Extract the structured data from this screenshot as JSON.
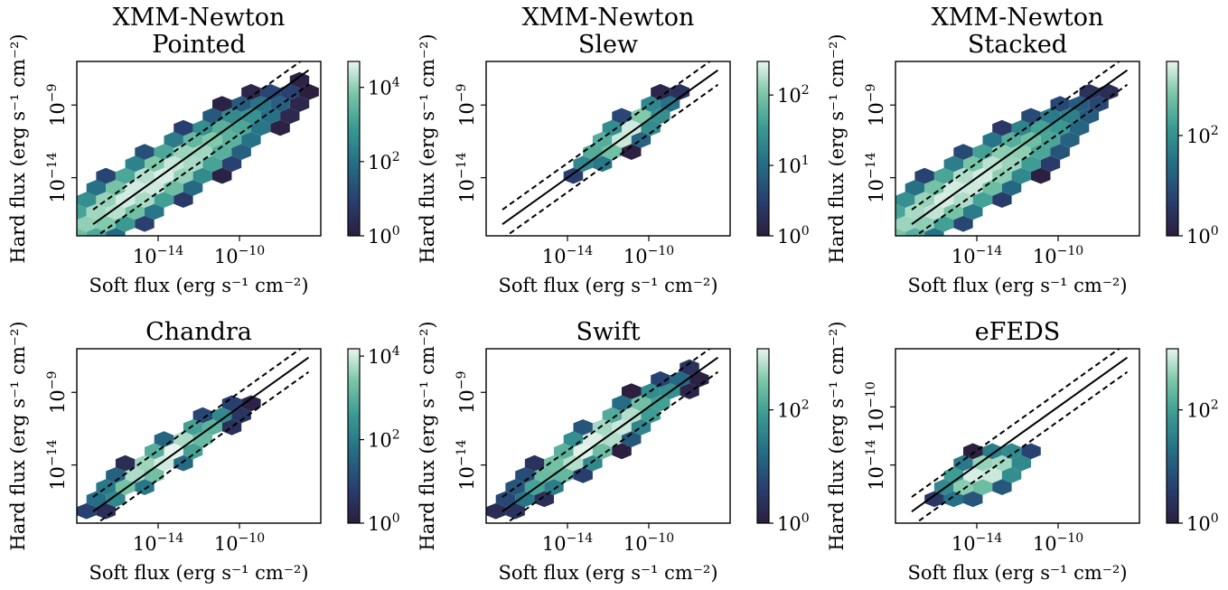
{
  "figure": {
    "type": "hexbin-scatter-grid",
    "xlabel": "Soft flux (erg s⁻¹ cm⁻²)",
    "ylabel": "Hard flux (erg s⁻¹ cm⁻²)",
    "x_scale": "log",
    "y_scale": "log",
    "colorbar_scale": "log",
    "colormap": [
      "#2c1e3d",
      "#283f70",
      "#256f86",
      "#3a9a92",
      "#7cc7a8",
      "#e9f5ef"
    ],
    "ref_lines": {
      "solid": "y = x",
      "dashed": "y = x ± 1 dex"
    }
  },
  "chart_data": [
    {
      "type": "hexbin",
      "title": [
        "XMM-Newton",
        "Pointed"
      ],
      "xlim": [
        1e-18,
        1e-06
      ],
      "ylim": [
        1e-18,
        1e-06
      ],
      "xticks": [
        "10^-14",
        "10^-10"
      ],
      "yticks": [
        "10^-14",
        "10^-9"
      ],
      "colorbar": {
        "min": 1,
        "max": 50000,
        "ticks": [
          "10^0",
          "10^2",
          "10^4"
        ]
      },
      "density": {
        "center": [
          -14.5,
          -14.5
        ],
        "spread": [
          3.5,
          3.3
        ],
        "slope": 0.85,
        "corr": 0.7,
        "peak_log_count": 4.6
      }
    },
    {
      "type": "hexbin",
      "title": [
        "XMM-Newton",
        "Slew"
      ],
      "xlim": [
        1e-18,
        1e-06
      ],
      "ylim": [
        1e-18,
        1e-06
      ],
      "xticks": [
        "10^-14",
        "10^-10"
      ],
      "yticks": [
        "10^-14",
        "10^-9"
      ],
      "colorbar": {
        "min": 1,
        "max": 300,
        "ticks": [
          "10^0",
          "10^1",
          "10^2"
        ]
      },
      "density": {
        "center": [
          -11.2,
          -11.0
        ],
        "spread": [
          1.3,
          1.1
        ],
        "slope": 0.95,
        "corr": 0.6,
        "peak_log_count": 2.4
      }
    },
    {
      "type": "hexbin",
      "title": [
        "XMM-Newton",
        "Stacked"
      ],
      "xlim": [
        1e-18,
        1e-06
      ],
      "ylim": [
        1e-18,
        1e-06
      ],
      "xticks": [
        "10^-14",
        "10^-10"
      ],
      "yticks": [
        "10^-14",
        "10^-9"
      ],
      "colorbar": {
        "min": 1,
        "max": 3000,
        "ticks": [
          "10^0",
          "10^2"
        ]
      },
      "density": {
        "center": [
          -14.8,
          -14.8
        ],
        "spread": [
          3.4,
          3.1
        ],
        "slope": 0.85,
        "corr": 0.68,
        "peak_log_count": 3.4
      }
    },
    {
      "type": "hexbin",
      "title": [
        "Chandra"
      ],
      "xlim": [
        1e-18,
        1e-06
      ],
      "ylim": [
        1e-18,
        1e-06
      ],
      "xticks": [
        "10^-14",
        "10^-10"
      ],
      "yticks": [
        "10^-14",
        "10^-9"
      ],
      "colorbar": {
        "min": 1,
        "max": 15000,
        "ticks": [
          "10^0",
          "10^2",
          "10^4"
        ]
      },
      "density": {
        "center": [
          -13.7,
          -13.5
        ],
        "spread": [
          1.9,
          1.8
        ],
        "slope": 0.9,
        "corr": 0.75,
        "peak_log_count": 4.2
      }
    },
    {
      "type": "hexbin",
      "title": [
        "Swift"
      ],
      "xlim": [
        1e-18,
        1e-06
      ],
      "ylim": [
        1e-18,
        1e-06
      ],
      "xticks": [
        "10^-14",
        "10^-10"
      ],
      "yticks": [
        "10^-14",
        "10^-9"
      ],
      "colorbar": {
        "min": 1,
        "max": 1200,
        "ticks": [
          "10^0",
          "10^2"
        ]
      },
      "density": {
        "center": [
          -12.5,
          -12.3
        ],
        "spread": [
          2.3,
          2.1
        ],
        "slope": 0.95,
        "corr": 0.72,
        "peak_log_count": 3.1
      }
    },
    {
      "type": "hexbin",
      "title": [
        "eFEDS"
      ],
      "xlim": [
        1e-18,
        1e-06
      ],
      "ylim": [
        1e-18,
        1e-06
      ],
      "xticks": [
        "10^-14",
        "10^-10"
      ],
      "yticks": [
        "10^-14",
        "10^-10"
      ],
      "colorbar": {
        "min": 1,
        "max": 1200,
        "ticks": [
          "10^0",
          "10^2"
        ]
      },
      "density": {
        "center": [
          -13.7,
          -14.6
        ],
        "spread": [
          1.2,
          1.0
        ],
        "slope": 0.5,
        "corr": 0.45,
        "peak_log_count": 3.1
      }
    }
  ]
}
